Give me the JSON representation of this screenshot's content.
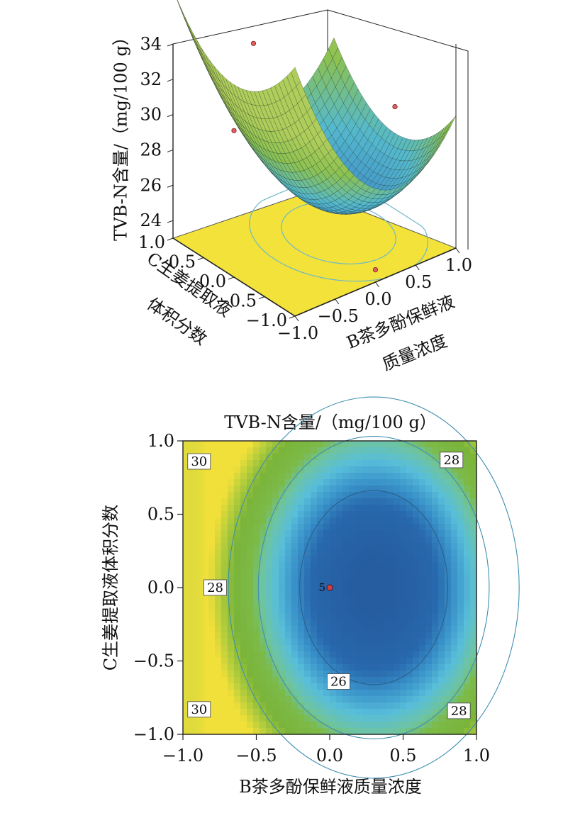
{
  "chart_data": [
    {
      "type": "surface",
      "zlabel": "TVB-N含量/（mg/100 g）",
      "xlabel": [
        "B茶多酚保鲜液",
        "质量浓度"
      ],
      "ylabel": [
        "C生姜提取液",
        "体积分数"
      ],
      "x_ticks": [
        "−1.0",
        "−0.5",
        "0.0",
        "0.5",
        "1.0"
      ],
      "y_ticks": [
        "−1.0",
        "−0.5",
        "0.0",
        "0.5",
        "1.0"
      ],
      "z_ticks": [
        "24",
        "26",
        "28",
        "30",
        "32",
        "34"
      ],
      "xlim": [
        -1,
        1
      ],
      "ylim": [
        -1,
        1
      ],
      "zlim": [
        23,
        34
      ],
      "model": {
        "z0": 24.6,
        "bx": 0.3,
        "by": 0,
        "ax": 5.5,
        "ay": 3.2
      },
      "design_points": [
        {
          "x": -1,
          "y": 0,
          "z": 31.3
        },
        {
          "x": 0,
          "y": 1,
          "z": 32.1
        },
        {
          "x": 1,
          "y": 0,
          "z": 28.8
        },
        {
          "x": 0,
          "y": -1,
          "z": 23.7
        }
      ],
      "colors": {
        "surface_low": "#3a86c8",
        "surface_high": "#8cc151",
        "floor": "#f2e23a"
      }
    },
    {
      "type": "contour",
      "title": "TVB-N含量/（mg/100 g）",
      "xlabel": "B茶多酚保鲜液质量浓度",
      "ylabel": "C生姜提取液体积分数",
      "x_ticks": [
        "−1.0",
        "−0.5",
        "0.0",
        "0.5",
        "1.0"
      ],
      "y_ticks": [
        "−1.0",
        "−0.5",
        "0.0",
        "0.5",
        "1.0"
      ],
      "xlim": [
        -1,
        1
      ],
      "ylim": [
        -1,
        1
      ],
      "contour_levels": [
        26,
        28,
        30
      ],
      "contour_labels": [
        {
          "text": "30",
          "x": -0.89,
          "y": 0.86
        },
        {
          "text": "28",
          "x": 0.83,
          "y": 0.87
        },
        {
          "text": "28",
          "x": -0.78,
          "y": 0.0
        },
        {
          "text": "26",
          "x": 0.06,
          "y": -0.64
        },
        {
          "text": "30",
          "x": -0.89,
          "y": -0.83
        },
        {
          "text": "28",
          "x": 0.88,
          "y": -0.84
        }
      ],
      "center_point": {
        "x": 0,
        "y": 0,
        "label": "5"
      }
    }
  ]
}
